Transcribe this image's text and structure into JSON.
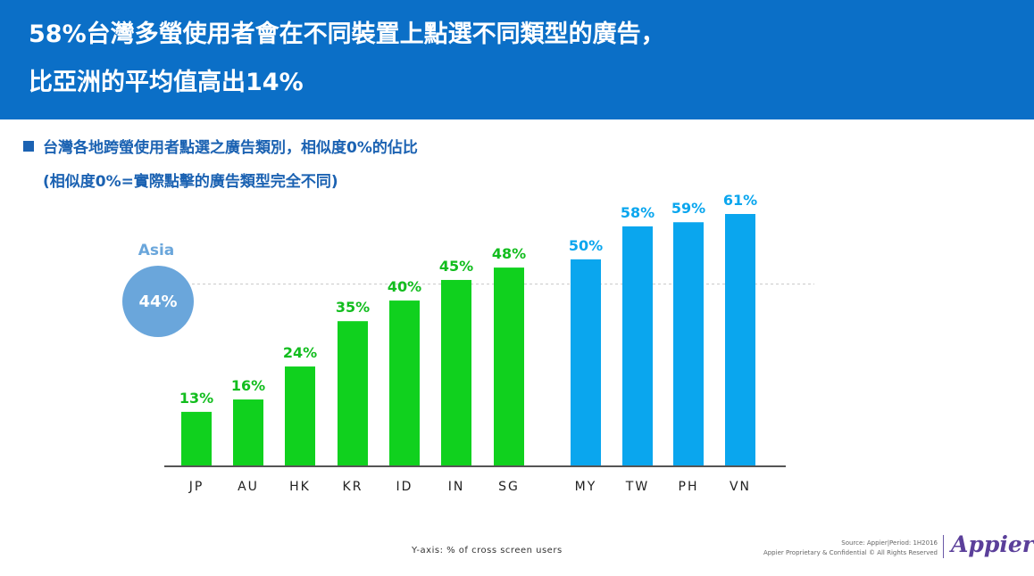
{
  "header": {
    "line1": "58%台灣多螢使用者會在不同裝置上點選不同類型的廣告，",
    "line2": "比亞洲的平均值高出14%"
  },
  "subtitle": {
    "line1": "台灣各地跨螢使用者點選之廣告類別，相似度0%的佔比",
    "line2": "(相似度0%=實際點擊的廣告類型完全不同)"
  },
  "chart_data": {
    "type": "bar",
    "categories": [
      "JP",
      "AU",
      "HK",
      "KR",
      "ID",
      "IN",
      "SG",
      "MY",
      "TW",
      "PH",
      "VN"
    ],
    "values": [
      13,
      16,
      24,
      35,
      40,
      45,
      48,
      50,
      58,
      59,
      61
    ],
    "labels": [
      "13%",
      "16%",
      "24%",
      "35%",
      "40%",
      "45%",
      "48%",
      "50%",
      "58%",
      "59%",
      "61%"
    ],
    "bar_colors": [
      "#10d11e",
      "#10d11e",
      "#10d11e",
      "#10d11e",
      "#10d11e",
      "#10d11e",
      "#10d11e",
      "#0aa6ee",
      "#0aa6ee",
      "#0aa6ee",
      "#0aa6ee"
    ],
    "label_colors": [
      "#12bd1e",
      "#12bd1e",
      "#12bd1e",
      "#12bd1e",
      "#12bd1e",
      "#12bd1e",
      "#12bd1e",
      "#0aa6ee",
      "#0aa6ee",
      "#0aa6ee",
      "#0aa6ee"
    ],
    "reference": {
      "name": "Asia",
      "value": 44,
      "label": "44%",
      "style": "dashed",
      "color": "#6aa6db"
    },
    "ylim": [
      0,
      65
    ],
    "grid": false
  },
  "footer": {
    "axis_note": "Y-axis: % of cross screen users",
    "source": "Source: Appier|Period: 1H2016",
    "rights": "Appier Proprietary & Confidential © All Rights Reserved",
    "brand": "Appier"
  }
}
